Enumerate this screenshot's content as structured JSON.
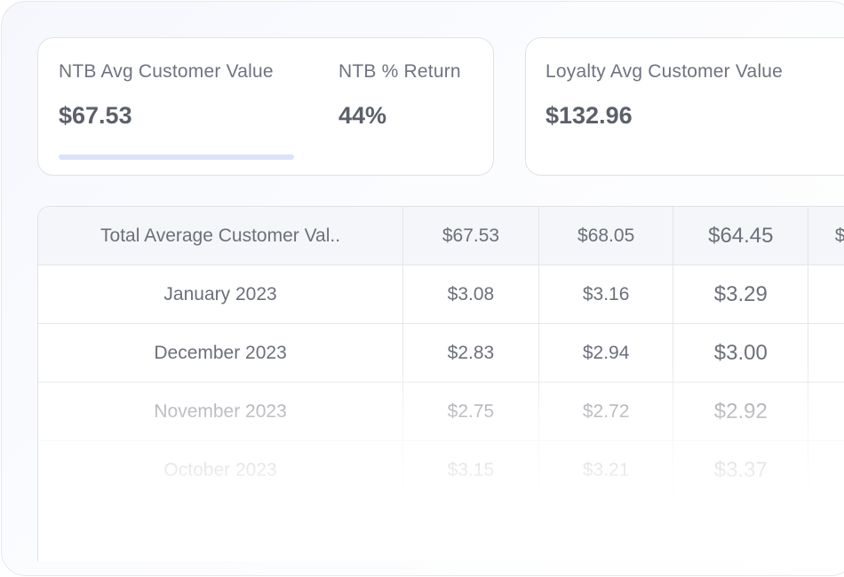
{
  "cards": {
    "ntb": {
      "avg_label": "NTB Avg Customer Value",
      "avg_value": "$67.53",
      "return_label": "NTB % Return",
      "return_value": "44%"
    },
    "loyalty": {
      "avg_label": "Loyalty Avg Customer Value",
      "avg_value": "$132.96"
    }
  },
  "table": {
    "header": [
      "Total Average Customer Val..",
      "$67.53",
      "$68.05",
      "$64.45",
      "$"
    ],
    "rows": [
      [
        "January 2023",
        "$3.08",
        "$3.16",
        "$3.29",
        ""
      ],
      [
        "December 2023",
        "$2.83",
        "$2.94",
        "$3.00",
        ""
      ],
      [
        "November 2023",
        "$2.75",
        "$2.72",
        "$2.92",
        ""
      ],
      [
        "October 2023",
        "$3.15",
        "$3.21",
        "$3.37",
        ""
      ]
    ]
  }
}
